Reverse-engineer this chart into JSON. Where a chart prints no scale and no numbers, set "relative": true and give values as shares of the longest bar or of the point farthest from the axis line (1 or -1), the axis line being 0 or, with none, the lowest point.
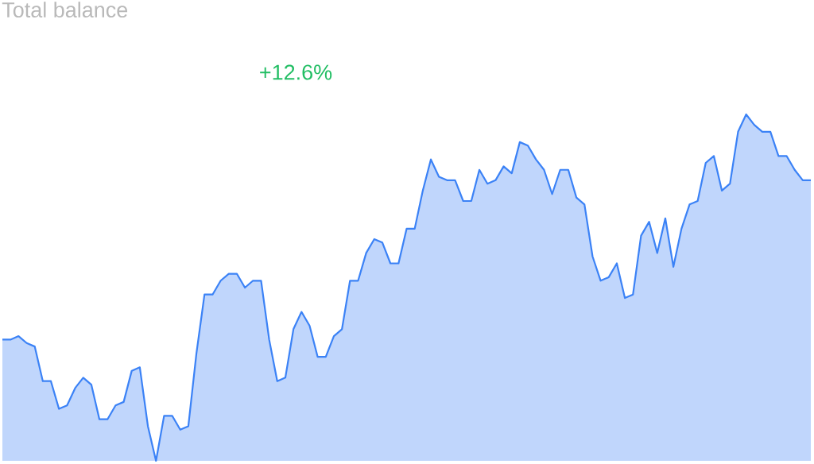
{
  "chart_data": {
    "type": "area",
    "title": "Total balance",
    "annotations": [
      "+12.6%"
    ],
    "relative": true,
    "tick_labels": false,
    "categories": [
      null,
      null,
      null,
      null,
      null,
      null,
      null,
      null,
      null,
      null,
      null,
      null,
      null,
      null,
      null,
      null,
      null,
      null,
      null,
      null,
      null,
      null,
      null,
      null,
      null,
      null,
      null,
      null,
      null,
      null,
      null,
      null,
      null,
      null,
      null,
      null,
      null,
      null,
      null,
      null,
      null,
      null,
      null,
      null,
      null,
      null,
      null,
      null,
      null,
      null,
      null,
      null,
      null,
      null,
      null,
      null,
      null,
      null,
      null,
      null,
      null,
      null,
      null,
      null,
      null,
      null,
      null,
      null,
      null,
      null,
      null,
      null,
      null,
      null,
      null,
      null,
      null,
      null,
      null,
      null,
      null,
      null,
      null,
      null,
      null,
      null,
      null,
      null,
      null,
      null,
      null,
      null,
      null,
      null,
      null,
      null,
      null,
      null,
      null,
      null,
      null
    ],
    "series": [
      {
        "color": "#3b82f6",
        "values": [
          0.35,
          0.35,
          0.36,
          0.34,
          0.33,
          0.23,
          0.23,
          0.15,
          0.16,
          0.21,
          0.24,
          0.22,
          0.12,
          0.12,
          0.16,
          0.17,
          0.26,
          0.27,
          0.1,
          0,
          0.13,
          0.13,
          0.09,
          0.1,
          0.31,
          0.48,
          0.48,
          0.52,
          0.54,
          0.54,
          0.5,
          0.52,
          0.52,
          0.35,
          0.23,
          0.24,
          0.38,
          0.43,
          0.39,
          0.3,
          0.3,
          0.36,
          0.38,
          0.52,
          0.52,
          0.6,
          0.64,
          0.63,
          0.57,
          0.57,
          0.67,
          0.67,
          0.78,
          0.87,
          0.82,
          0.81,
          0.81,
          0.75,
          0.75,
          0.84,
          0.8,
          0.81,
          0.85,
          0.83,
          0.92,
          0.91,
          0.87,
          0.84,
          0.77,
          0.84,
          0.84,
          0.76,
          0.74,
          0.59,
          0.52,
          0.53,
          0.57,
          0.47,
          0.48,
          0.65,
          0.69,
          0.6,
          0.7,
          0.56,
          0.67,
          0.74,
          0.75,
          0.86,
          0.88,
          0.78,
          0.8,
          0.95,
          1,
          0.97,
          0.95,
          0.95,
          0.88,
          0.88,
          0.84,
          0.81,
          0.81
        ]
      }
    ]
  }
}
